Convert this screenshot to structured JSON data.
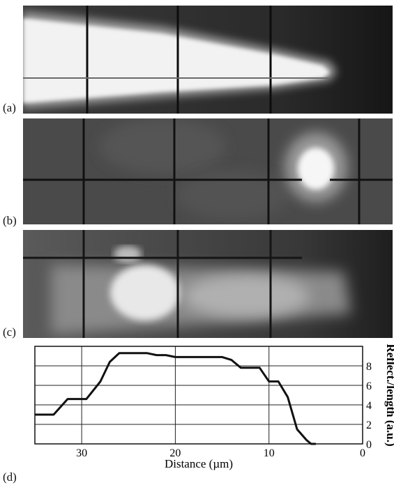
{
  "figure": {
    "panel_labels": {
      "a": "(a)",
      "b": "(b)",
      "c": "(c)",
      "d": "(d)"
    }
  },
  "chart_data": {
    "type": "line",
    "title": "",
    "xlabel": "Distance (µm)",
    "ylabel": "Reflect./length (a.u.)",
    "x_reversed": true,
    "xlim": [
      35,
      0
    ],
    "ylim": [
      0,
      10
    ],
    "x_ticks": [
      30,
      20,
      10,
      0
    ],
    "y_ticks": [
      0,
      2,
      4,
      6,
      8
    ],
    "y_axis_side": "right",
    "grid": true,
    "series": [
      {
        "x": [
          35,
          33,
          31.5,
          29.5,
          28,
          27,
          26,
          25,
          23,
          22,
          21,
          20,
          19,
          15,
          14,
          13,
          12,
          11,
          10,
          9,
          8,
          7,
          6,
          5.5,
          5
        ],
        "values": [
          3.0,
          3.0,
          4.6,
          4.6,
          6.4,
          8.4,
          9.3,
          9.3,
          9.3,
          9.1,
          9.1,
          8.9,
          8.9,
          8.9,
          8.6,
          7.8,
          7.8,
          7.8,
          6.4,
          6.4,
          4.8,
          1.5,
          0.4,
          0.0,
          0.0
        ]
      }
    ]
  }
}
